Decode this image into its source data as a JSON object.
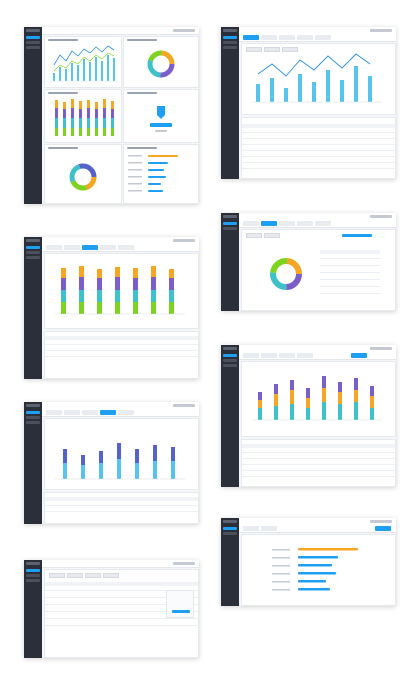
{
  "colors": {
    "sidebar": "#2b2f3a",
    "accent": "#1e9ff2",
    "line": "#2f8fd9",
    "bar_area": "#57c4ee",
    "orange": "#f5a623",
    "purple": "#7b5fc9",
    "green": "#7ed321",
    "teal": "#3fc1c9",
    "indigo": "#5661c9"
  },
  "screens": [
    {
      "name": "dashboard-overview",
      "panels": [
        "line-bar-chart",
        "donut-chart",
        "stacked-bar-chart",
        "kpi-card",
        "donut-chart",
        "horizontal-bar-list"
      ]
    },
    {
      "name": "line-chart-detail",
      "panels": [
        "line-bar-chart",
        "data-table"
      ]
    },
    {
      "name": "stacked-bar-detail",
      "panels": [
        "stacked-bar-chart",
        "data-table"
      ]
    },
    {
      "name": "donut-detail",
      "panels": [
        "donut-chart",
        "list"
      ]
    },
    {
      "name": "stacked-bar-detail-2",
      "panels": [
        "stacked-bar-chart",
        "data-table"
      ]
    },
    {
      "name": "bar-detail",
      "panels": [
        "stacked-bar-chart",
        "data-table"
      ]
    },
    {
      "name": "ranking-detail",
      "panels": [
        "horizontal-bar-list"
      ]
    },
    {
      "name": "records-table",
      "panels": [
        "data-table"
      ]
    }
  ]
}
